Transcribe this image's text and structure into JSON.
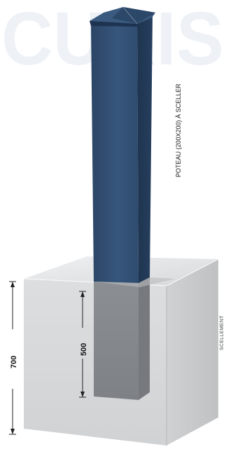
{
  "watermark": "CURIS",
  "labels": {
    "post": "POTEAU (200X200) À SCELLER",
    "sealing": "SCELLEMENT"
  },
  "dimensions": {
    "outer": "700",
    "inner": "500"
  },
  "colors": {
    "post": "#2f4a6b",
    "post_shadow": "#223a56",
    "post_highlight": "#3d5d85",
    "concrete_front": "#d9dbdd",
    "concrete_side": "#c9cbcd",
    "concrete_top": "#e4e5e6",
    "watermark": "#eef2f7"
  }
}
